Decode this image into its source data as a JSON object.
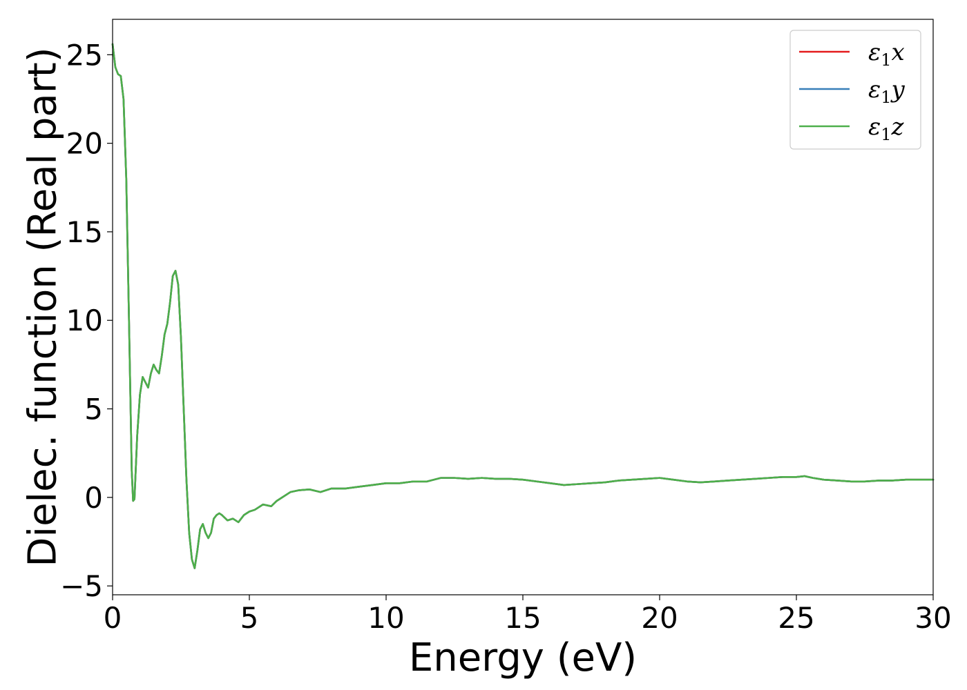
{
  "chart_data": {
    "type": "line",
    "xlabel": "Energy (eV)",
    "ylabel": "Dielec. function (Real part)",
    "xlim": [
      0,
      30
    ],
    "ylim": [
      -5.5,
      27
    ],
    "xticks": [
      0,
      5,
      10,
      15,
      20,
      25,
      30
    ],
    "yticks": [
      -5,
      0,
      5,
      10,
      15,
      20,
      25
    ],
    "xtick_labels": [
      "0",
      "5",
      "10",
      "15",
      "20",
      "25",
      "30"
    ],
    "ytick_labels": [
      "−5",
      "0",
      "5",
      "10",
      "15",
      "20",
      "25"
    ],
    "grid": false,
    "legend_position": "top-right",
    "series": [
      {
        "name": "ε1x",
        "symbol": "ε",
        "sub": "1",
        "axis": "x",
        "color": "#e41a1c",
        "x": [
          0,
          0.1,
          0.2,
          0.3,
          0.4,
          0.5,
          0.6,
          0.7,
          0.75,
          0.8,
          0.9,
          1.0,
          1.1,
          1.2,
          1.3,
          1.4,
          1.5,
          1.6,
          1.7,
          1.8,
          1.9,
          2.0,
          2.1,
          2.2,
          2.3,
          2.4,
          2.5,
          2.6,
          2.7,
          2.8,
          2.9,
          3.0,
          3.1,
          3.2,
          3.3,
          3.4,
          3.5,
          3.6,
          3.7,
          3.8,
          3.9,
          4.0,
          4.2,
          4.4,
          4.6,
          4.8,
          5.0,
          5.2,
          5.5,
          5.8,
          6.0,
          6.2,
          6.5,
          6.8,
          7.2,
          7.6,
          8.0,
          8.5,
          9.0,
          9.5,
          10.0,
          10.5,
          11.0,
          11.5,
          12.0,
          12.5,
          13.0,
          13.5,
          14.0,
          14.5,
          15.0,
          15.5,
          16.0,
          16.5,
          17.0,
          17.5,
          18.0,
          18.5,
          19.0,
          19.5,
          20.0,
          20.5,
          21.0,
          21.5,
          22.0,
          22.5,
          23.0,
          23.5,
          24.0,
          24.5,
          25.0,
          25.3,
          25.6,
          26.0,
          26.5,
          27.0,
          27.5,
          28.0,
          28.5,
          29.0,
          29.5,
          30.0
        ],
        "values": [
          25.6,
          24.3,
          23.9,
          23.8,
          22.5,
          18.0,
          10.0,
          1.5,
          -0.2,
          -0.1,
          3.5,
          5.8,
          6.8,
          6.5,
          6.2,
          7.0,
          7.5,
          7.2,
          7.0,
          8.0,
          9.2,
          9.8,
          11.0,
          12.5,
          12.8,
          12.0,
          9.0,
          5.0,
          1.0,
          -2.0,
          -3.5,
          -4.0,
          -3.0,
          -1.8,
          -1.5,
          -2.0,
          -2.3,
          -2.0,
          -1.2,
          -1.0,
          -0.9,
          -1.0,
          -1.3,
          -1.2,
          -1.4,
          -1.0,
          -0.8,
          -0.7,
          -0.4,
          -0.5,
          -0.2,
          0.0,
          0.3,
          0.4,
          0.45,
          0.3,
          0.5,
          0.5,
          0.6,
          0.7,
          0.8,
          0.8,
          0.9,
          0.9,
          1.1,
          1.1,
          1.05,
          1.1,
          1.05,
          1.05,
          1.0,
          0.9,
          0.8,
          0.7,
          0.75,
          0.8,
          0.85,
          0.95,
          1.0,
          1.05,
          1.1,
          1.0,
          0.9,
          0.85,
          0.9,
          0.95,
          1.0,
          1.05,
          1.1,
          1.15,
          1.15,
          1.2,
          1.1,
          1.0,
          0.95,
          0.9,
          0.9,
          0.95,
          0.95,
          1.0,
          1.0,
          1.0
        ]
      },
      {
        "name": "ε1y",
        "symbol": "ε",
        "sub": "1",
        "axis": "y",
        "color": "#377eb8",
        "x": [
          0,
          0.1,
          0.2,
          0.3,
          0.4,
          0.5,
          0.6,
          0.7,
          0.75,
          0.8,
          0.9,
          1.0,
          1.1,
          1.2,
          1.3,
          1.4,
          1.5,
          1.6,
          1.7,
          1.8,
          1.9,
          2.0,
          2.1,
          2.2,
          2.3,
          2.4,
          2.5,
          2.6,
          2.7,
          2.8,
          2.9,
          3.0,
          3.1,
          3.2,
          3.3,
          3.4,
          3.5,
          3.6,
          3.7,
          3.8,
          3.9,
          4.0,
          4.2,
          4.4,
          4.6,
          4.8,
          5.0,
          5.2,
          5.5,
          5.8,
          6.0,
          6.2,
          6.5,
          6.8,
          7.2,
          7.6,
          8.0,
          8.5,
          9.0,
          9.5,
          10.0,
          10.5,
          11.0,
          11.5,
          12.0,
          12.5,
          13.0,
          13.5,
          14.0,
          14.5,
          15.0,
          15.5,
          16.0,
          16.5,
          17.0,
          17.5,
          18.0,
          18.5,
          19.0,
          19.5,
          20.0,
          20.5,
          21.0,
          21.5,
          22.0,
          22.5,
          23.0,
          23.5,
          24.0,
          24.5,
          25.0,
          25.3,
          25.6,
          26.0,
          26.5,
          27.0,
          27.5,
          28.0,
          28.5,
          29.0,
          29.5,
          30.0
        ],
        "values": [
          25.6,
          24.3,
          23.9,
          23.8,
          22.5,
          18.0,
          10.0,
          1.5,
          -0.2,
          -0.1,
          3.5,
          5.8,
          6.8,
          6.5,
          6.2,
          7.0,
          7.5,
          7.2,
          7.0,
          8.0,
          9.2,
          9.8,
          11.0,
          12.5,
          12.8,
          12.0,
          9.0,
          5.0,
          1.0,
          -2.0,
          -3.5,
          -4.0,
          -3.0,
          -1.8,
          -1.5,
          -2.0,
          -2.3,
          -2.0,
          -1.2,
          -1.0,
          -0.9,
          -1.0,
          -1.3,
          -1.2,
          -1.4,
          -1.0,
          -0.8,
          -0.7,
          -0.4,
          -0.5,
          -0.2,
          0.0,
          0.3,
          0.4,
          0.45,
          0.3,
          0.5,
          0.5,
          0.6,
          0.7,
          0.8,
          0.8,
          0.9,
          0.9,
          1.1,
          1.1,
          1.05,
          1.1,
          1.05,
          1.05,
          1.0,
          0.9,
          0.8,
          0.7,
          0.75,
          0.8,
          0.85,
          0.95,
          1.0,
          1.05,
          1.1,
          1.0,
          0.9,
          0.85,
          0.9,
          0.95,
          1.0,
          1.05,
          1.1,
          1.15,
          1.15,
          1.2,
          1.1,
          1.0,
          0.95,
          0.9,
          0.9,
          0.95,
          0.95,
          1.0,
          1.0,
          1.0
        ]
      },
      {
        "name": "ε1z",
        "symbol": "ε",
        "sub": "1",
        "axis": "z",
        "color": "#4daf4a",
        "x": [
          0,
          0.1,
          0.2,
          0.3,
          0.4,
          0.5,
          0.6,
          0.7,
          0.75,
          0.8,
          0.9,
          1.0,
          1.1,
          1.2,
          1.3,
          1.4,
          1.5,
          1.6,
          1.7,
          1.8,
          1.9,
          2.0,
          2.1,
          2.2,
          2.3,
          2.4,
          2.5,
          2.6,
          2.7,
          2.8,
          2.9,
          3.0,
          3.1,
          3.2,
          3.3,
          3.4,
          3.5,
          3.6,
          3.7,
          3.8,
          3.9,
          4.0,
          4.2,
          4.4,
          4.6,
          4.8,
          5.0,
          5.2,
          5.5,
          5.8,
          6.0,
          6.2,
          6.5,
          6.8,
          7.2,
          7.6,
          8.0,
          8.5,
          9.0,
          9.5,
          10.0,
          10.5,
          11.0,
          11.5,
          12.0,
          12.5,
          13.0,
          13.5,
          14.0,
          14.5,
          15.0,
          15.5,
          16.0,
          16.5,
          17.0,
          17.5,
          18.0,
          18.5,
          19.0,
          19.5,
          20.0,
          20.5,
          21.0,
          21.5,
          22.0,
          22.5,
          23.0,
          23.5,
          24.0,
          24.5,
          25.0,
          25.3,
          25.6,
          26.0,
          26.5,
          27.0,
          27.5,
          28.0,
          28.5,
          29.0,
          29.5,
          30.0
        ],
        "values": [
          25.6,
          24.3,
          23.9,
          23.8,
          22.5,
          18.0,
          10.0,
          1.5,
          -0.2,
          -0.1,
          3.5,
          5.8,
          6.8,
          6.5,
          6.2,
          7.0,
          7.5,
          7.2,
          7.0,
          8.0,
          9.2,
          9.8,
          11.0,
          12.5,
          12.8,
          12.0,
          9.0,
          5.0,
          1.0,
          -2.0,
          -3.5,
          -4.0,
          -3.0,
          -1.8,
          -1.5,
          -2.0,
          -2.3,
          -2.0,
          -1.2,
          -1.0,
          -0.9,
          -1.0,
          -1.3,
          -1.2,
          -1.4,
          -1.0,
          -0.8,
          -0.7,
          -0.4,
          -0.5,
          -0.2,
          0.0,
          0.3,
          0.4,
          0.45,
          0.3,
          0.5,
          0.5,
          0.6,
          0.7,
          0.8,
          0.8,
          0.9,
          0.9,
          1.1,
          1.1,
          1.05,
          1.1,
          1.05,
          1.05,
          1.0,
          0.9,
          0.8,
          0.7,
          0.75,
          0.8,
          0.85,
          0.95,
          1.0,
          1.05,
          1.1,
          1.0,
          0.9,
          0.85,
          0.9,
          0.95,
          1.0,
          1.05,
          1.1,
          1.15,
          1.15,
          1.2,
          1.1,
          1.0,
          0.95,
          0.9,
          0.9,
          0.95,
          0.95,
          1.0,
          1.0,
          1.0
        ]
      }
    ]
  }
}
